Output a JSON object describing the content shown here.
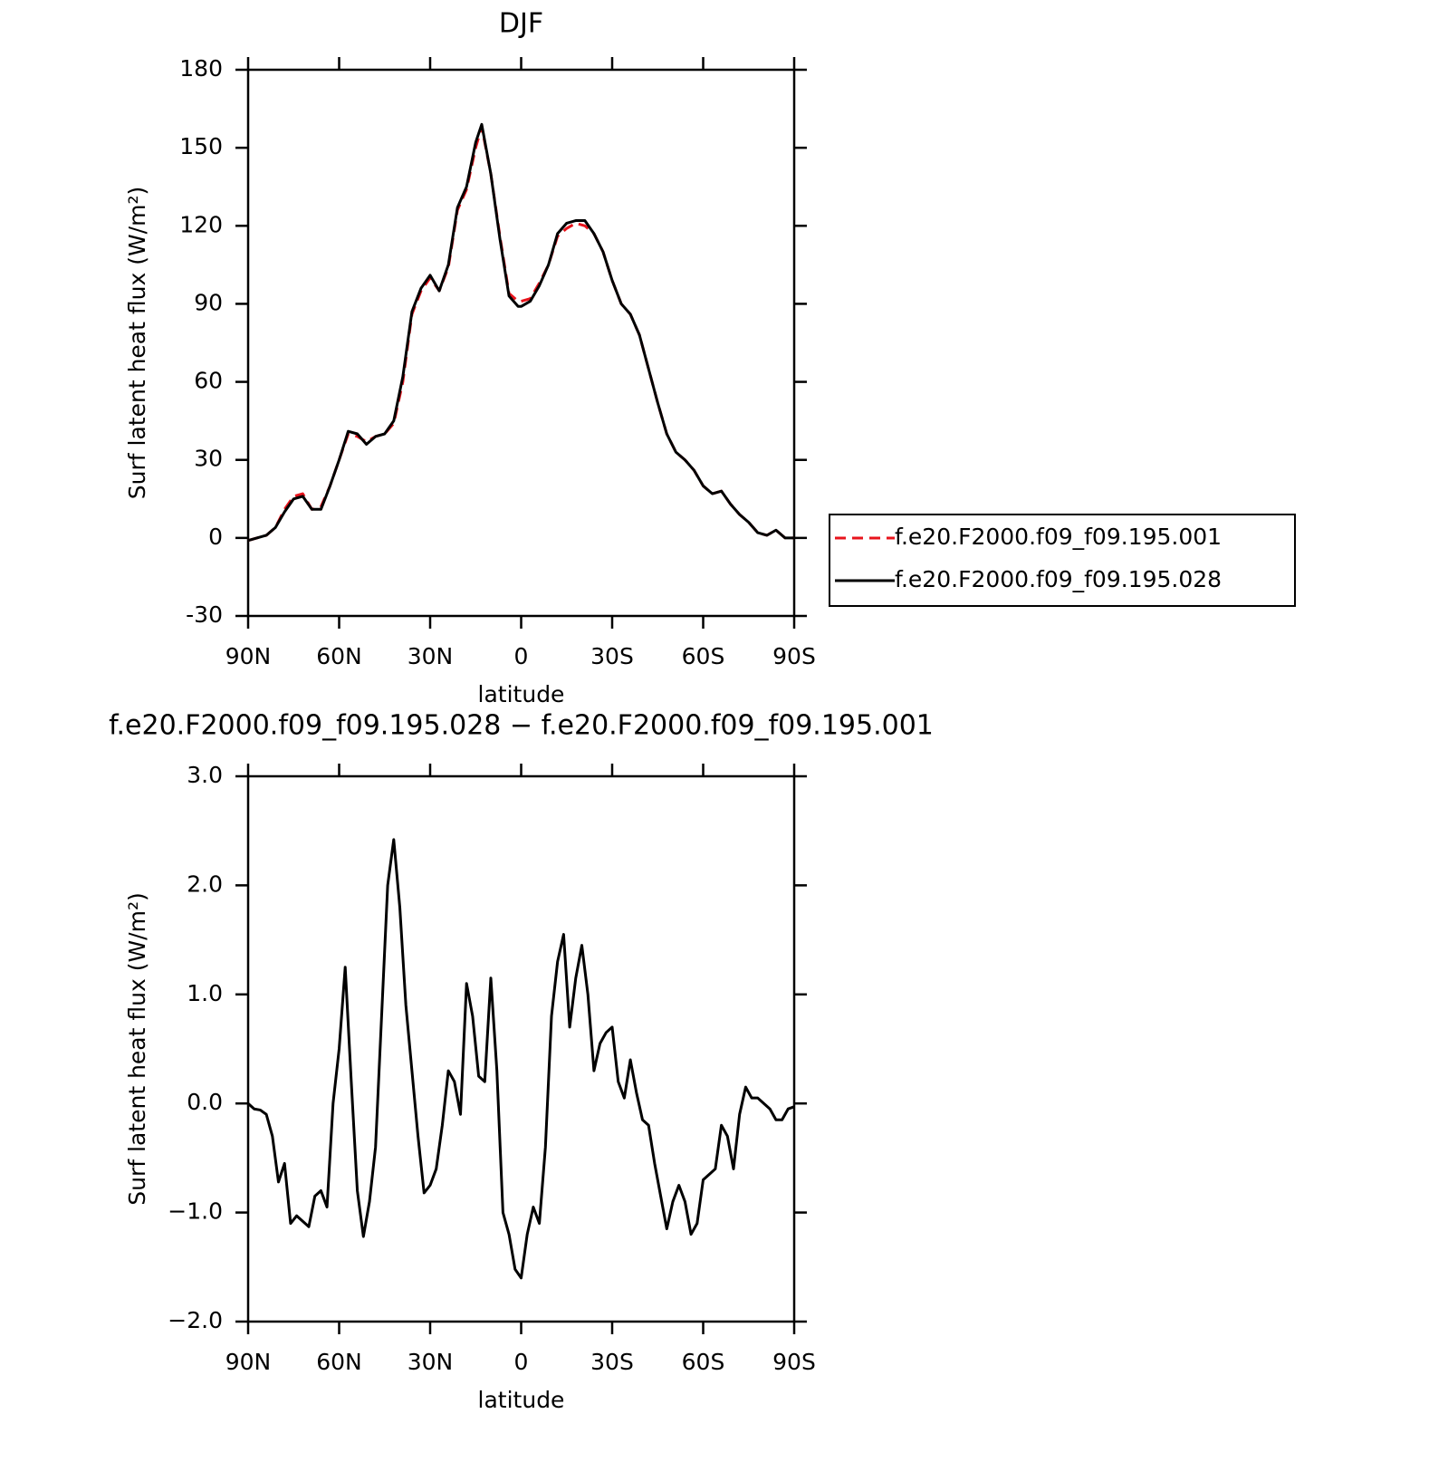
{
  "chart_data": [
    {
      "type": "line",
      "title": "DJF",
      "xlabel": "latitude",
      "ylabel": "Surf latent heat flux (W/m²)",
      "x": [
        90,
        87,
        84,
        81,
        78,
        75,
        72,
        69,
        66,
        63,
        60,
        57,
        54,
        51,
        48,
        45,
        42,
        39,
        36,
        33,
        30,
        27,
        24,
        21,
        18,
        15,
        13,
        10,
        7,
        4,
        1,
        0,
        -3,
        -6,
        -9,
        -12,
        -15,
        -18,
        -21,
        -24,
        -27,
        -30,
        -33,
        -36,
        -39,
        -42,
        -45,
        -48,
        -51,
        -54,
        -57,
        -60,
        -63,
        -66,
        -69,
        -72,
        -75,
        -78,
        -81,
        -84,
        -87,
        -90
      ],
      "series": [
        {
          "name": "f.e20.F2000.f09_f09.195.001",
          "color": "#e8141c",
          "dashed": true,
          "values": [
            -1,
            0,
            1,
            4,
            11,
            16,
            17,
            11,
            12,
            20,
            30,
            40,
            39,
            37,
            39,
            40,
            44,
            60,
            86,
            95,
            100,
            95,
            104,
            126,
            134,
            150,
            158,
            140,
            116,
            94,
            91,
            91,
            92,
            98,
            105,
            116,
            119,
            121,
            120,
            117,
            110,
            99,
            90,
            86,
            78,
            65,
            52,
            40,
            33,
            30,
            26,
            20,
            17,
            18,
            13,
            9,
            6,
            2,
            1,
            3,
            0,
            0
          ]
        },
        {
          "name": "f.e20.F2000.f09_f09.195.028",
          "color": "#000000",
          "dashed": false,
          "values": [
            -1,
            0,
            1,
            4,
            10,
            15,
            16,
            11,
            11,
            20,
            30,
            41,
            40,
            36,
            39,
            40,
            45,
            62,
            87,
            96,
            101,
            95,
            105,
            127,
            135,
            152,
            159,
            140,
            115,
            93,
            89,
            89,
            91,
            97,
            105,
            117,
            121,
            122,
            122,
            117,
            110,
            99,
            90,
            86,
            78,
            65,
            52,
            40,
            33,
            30,
            26,
            20,
            17,
            18,
            13,
            9,
            6,
            2,
            1,
            3,
            0,
            0
          ]
        }
      ],
      "xlim": [
        90,
        -90
      ],
      "xticks": [
        {
          "value": 90,
          "label": "90N"
        },
        {
          "value": 60,
          "label": "60N"
        },
        {
          "value": 30,
          "label": "30N"
        },
        0,
        {
          "value": -30,
          "label": "30S"
        },
        {
          "value": -60,
          "label": "60S"
        },
        {
          "value": -90,
          "label": "90S"
        }
      ],
      "ylim": [
        -30,
        180
      ],
      "yticks": [
        -30,
        0,
        30,
        60,
        90,
        120,
        150,
        180
      ],
      "legend": "right"
    },
    {
      "type": "line",
      "title": "f.e20.F2000.f09_f09.195.028 − f.e20.F2000.f09_f09.195.001",
      "xlabel": "latitude",
      "ylabel": "Surf latent heat flux (W/m²)",
      "x": [
        90,
        88,
        86,
        84,
        82,
        80,
        78,
        76,
        74,
        72,
        70,
        68,
        66,
        64,
        62,
        60,
        58,
        56,
        54,
        52,
        50,
        48,
        46,
        44,
        42,
        40,
        38,
        36,
        34,
        32,
        30,
        28,
        26,
        24,
        22,
        20,
        18,
        16,
        14,
        12,
        10,
        8,
        6,
        4,
        2,
        0,
        -2,
        -4,
        -6,
        -8,
        -10,
        -12,
        -14,
        -16,
        -18,
        -20,
        -22,
        -24,
        -26,
        -28,
        -30,
        -32,
        -34,
        -36,
        -38,
        -40,
        -42,
        -44,
        -46,
        -48,
        -50,
        -52,
        -54,
        -56,
        -58,
        -60,
        -62,
        -64,
        -66,
        -68,
        -70,
        -72,
        -74,
        -76,
        -78,
        -80,
        -82,
        -84,
        -86,
        -88,
        -90
      ],
      "values": [
        0,
        -0.05,
        -0.06,
        -0.1,
        -0.3,
        -0.72,
        -0.55,
        -1.1,
        -1.03,
        -1.08,
        -1.13,
        -0.85,
        -0.8,
        -0.95,
        0,
        0.5,
        1.25,
        0.2,
        -0.8,
        -1.22,
        -0.9,
        -0.4,
        0.8,
        2,
        2.42,
        1.8,
        0.9,
        0.3,
        -0.3,
        -0.82,
        -0.75,
        -0.6,
        -0.2,
        0.3,
        0.2,
        -0.1,
        1.1,
        0.8,
        0.25,
        0.2,
        1.15,
        0.3,
        -1,
        -1.2,
        -1.52,
        -1.6,
        -1.2,
        -0.95,
        -1.1,
        -0.4,
        0.8,
        1.3,
        1.55,
        0.7,
        1.15,
        1.45,
        1,
        0.3,
        0.55,
        0.65,
        0.7,
        0.2,
        0.05,
        0.4,
        0.1,
        -0.15,
        -0.2,
        -0.55,
        -0.85,
        -1.15,
        -0.9,
        -0.75,
        -0.9,
        -1.2,
        -1.1,
        -0.7,
        -0.65,
        -0.6,
        -0.2,
        -0.3,
        -0.6,
        -0.1,
        0.15,
        0.05,
        0.05,
        0,
        -0.05,
        -0.15,
        -0.15,
        -0.05,
        -0.03
      ],
      "color": "#000000",
      "xlim": [
        90,
        -90
      ],
      "xticks": [
        {
          "value": 90,
          "label": "90N"
        },
        {
          "value": 60,
          "label": "60N"
        },
        {
          "value": 30,
          "label": "30N"
        },
        0,
        {
          "value": -30,
          "label": "30S"
        },
        {
          "value": -60,
          "label": "60S"
        },
        {
          "value": -90,
          "label": "90S"
        }
      ],
      "ylim": [
        -2,
        3
      ],
      "yticks": [
        {
          "value": -2,
          "label": "−2.0"
        },
        {
          "value": -1,
          "label": "−1.0"
        },
        {
          "value": 0,
          "label": "0.0"
        },
        {
          "value": 1,
          "label": "1.0"
        },
        {
          "value": 2,
          "label": "2.0"
        },
        {
          "value": 3,
          "label": "3.0"
        }
      ]
    }
  ]
}
